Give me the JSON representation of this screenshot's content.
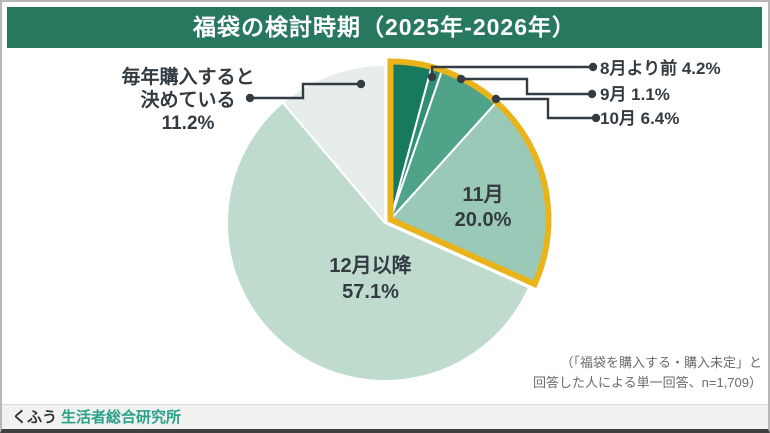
{
  "title": "福袋の検討時期（2025年-2026年）",
  "chart_data": {
    "type": "pie",
    "title": "福袋の検討時期（2025年-2026年）",
    "unit": "percent",
    "direction": "clockwise",
    "start_angle_deg": 0,
    "total": 100,
    "slices": [
      {
        "id": "pre-august",
        "label": "8月より前",
        "value": 4.2,
        "display": "8月より前 4.2%",
        "color": "#17795e",
        "highlighted": true
      },
      {
        "id": "september",
        "label": "9月",
        "value": 1.1,
        "display": "9月 1.1%",
        "color": "#2f8e75",
        "highlighted": true
      },
      {
        "id": "october",
        "label": "10月",
        "value": 6.4,
        "display": "10月 6.4%",
        "color": "#4fa388",
        "highlighted": true
      },
      {
        "id": "november",
        "label": "11月",
        "value": 20.0,
        "display_line1": "11月",
        "display_line2": "20.0%",
        "color": "#9bc9b7",
        "highlighted": true
      },
      {
        "id": "december-or-later",
        "label": "12月以降",
        "value": 57.1,
        "display_line1": "12月以降",
        "display_line2": "57.1%",
        "color": "#bedbce",
        "highlighted": false
      },
      {
        "id": "decided-every-year",
        "label": "毎年購入すると決めている",
        "value": 11.2,
        "display_line1": "毎年購入すると",
        "display_line2": "決めている",
        "display_line3": "11.2%",
        "color": "#e6edea",
        "highlighted": false
      }
    ],
    "highlight_outline_color": "#e9b31b",
    "legend": "none",
    "annotation": "8月〜11月の合計（31.7%）が黄色の枠で強調されている"
  },
  "footnote": {
    "line1": "（「福袋を購入する・購入未定」と",
    "line2": "回答した人による単一回答、n=1,709）"
  },
  "brand": {
    "prefix": "くふう",
    "name": "生活者総合研究所"
  },
  "colors": {
    "header_bg": "#27785f",
    "highlight": "#e9b31b",
    "text_dark": "#333b42",
    "leader": "#343c43",
    "brand_teal": "#2aa189",
    "footer_bg": "#f1f1ef",
    "note_gray": "#6a6a6a"
  }
}
